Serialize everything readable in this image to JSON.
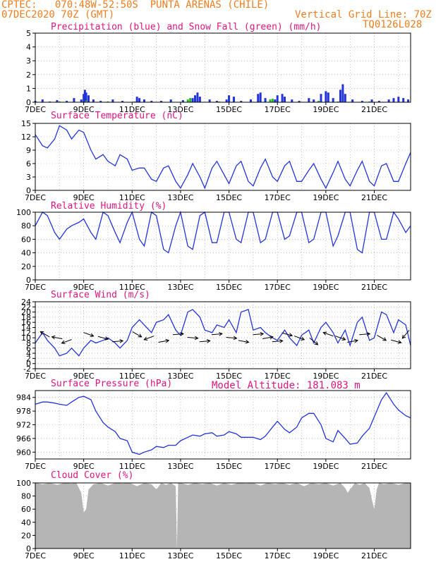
{
  "header": {
    "left_line1": "CPTEC:   070:48W-52:50S  PUNTA ARENAS (CHILE)",
    "left_line2": "07DEC2020 70Z (GMT)",
    "right_line1": "Vertical Grid Line: 70Z",
    "right_line2": "TQ0126L028",
    "model_altitude": "Model Altitude: 181.083 m"
  },
  "colors": {
    "header": "#f07d1e",
    "panel_title": "#e0147c",
    "line": "#2233dd",
    "snow": "#22bb22",
    "cloud": "#b5b5b5",
    "arrow": "#000000"
  },
  "x_axis": {
    "tick_labels": [
      "7DEC",
      "9DEC",
      "11DEC",
      "13DEC",
      "15DEC",
      "17DEC",
      "19DEC",
      "21DEC"
    ],
    "tick_days": [
      0,
      2,
      4,
      6,
      8,
      10,
      12,
      14
    ],
    "day_range": [
      0,
      15.5
    ]
  },
  "chart_data": [
    {
      "type": "bar",
      "title": "Precipitation (blue) and Snow Fall (green) (mm/h)",
      "ylim": [
        0,
        5
      ],
      "yticks": [
        0,
        1,
        2,
        3,
        4,
        5
      ],
      "series": [
        {
          "name": "Precipitation",
          "values": [
            [
              0.0,
              0.1
            ],
            [
              0.3,
              0.2
            ],
            [
              0.6,
              0.05
            ],
            [
              0.9,
              0.15
            ],
            [
              1.3,
              0.1
            ],
            [
              1.6,
              0.3
            ],
            [
              1.9,
              0.2
            ],
            [
              2.0,
              0.6
            ],
            [
              2.05,
              0.9
            ],
            [
              2.1,
              0.7
            ],
            [
              2.2,
              0.5
            ],
            [
              2.4,
              0.2
            ],
            [
              2.7,
              0.1
            ],
            [
              3.2,
              0.2
            ],
            [
              3.6,
              0.1
            ],
            [
              4.2,
              0.4
            ],
            [
              4.3,
              0.3
            ],
            [
              4.5,
              0.2
            ],
            [
              4.8,
              0.1
            ],
            [
              5.2,
              0.1
            ],
            [
              5.6,
              0.2
            ],
            [
              6.1,
              0.15
            ],
            [
              6.5,
              0.3
            ],
            [
              6.6,
              0.5
            ],
            [
              6.7,
              0.7
            ],
            [
              6.8,
              0.4
            ],
            [
              7.2,
              0.2
            ],
            [
              7.5,
              0.1
            ],
            [
              7.9,
              0.2
            ],
            [
              8.0,
              0.5
            ],
            [
              8.2,
              0.4
            ],
            [
              8.5,
              0.1
            ],
            [
              8.9,
              0.2
            ],
            [
              9.2,
              0.6
            ],
            [
              9.3,
              0.7
            ],
            [
              9.5,
              0.3
            ],
            [
              9.9,
              0.2
            ],
            [
              10.0,
              0.5
            ],
            [
              10.2,
              0.6
            ],
            [
              10.3,
              0.4
            ],
            [
              10.6,
              0.2
            ],
            [
              10.9,
              0.1
            ],
            [
              11.3,
              0.3
            ],
            [
              11.5,
              0.2
            ],
            [
              11.8,
              0.6
            ],
            [
              12.0,
              0.8
            ],
            [
              12.1,
              0.7
            ],
            [
              12.3,
              0.3
            ],
            [
              12.6,
              0.9
            ],
            [
              12.7,
              1.3
            ],
            [
              12.8,
              0.6
            ],
            [
              13.1,
              0.2
            ],
            [
              13.5,
              0.1
            ],
            [
              13.9,
              0.2
            ],
            [
              14.2,
              0.1
            ],
            [
              14.6,
              0.2
            ],
            [
              14.8,
              0.3
            ],
            [
              15.0,
              0.4
            ],
            [
              15.2,
              0.3
            ],
            [
              15.4,
              0.2
            ]
          ]
        },
        {
          "name": "Snow Fall",
          "values": [
            [
              1.0,
              0.05
            ],
            [
              2.1,
              0.1
            ],
            [
              3.0,
              0.05
            ],
            [
              4.1,
              0.05
            ],
            [
              6.3,
              0.2
            ],
            [
              6.4,
              0.3
            ],
            [
              7.6,
              0.05
            ],
            [
              9.7,
              0.2
            ],
            [
              9.8,
              0.25
            ],
            [
              11.7,
              0.1
            ],
            [
              12.5,
              0.05
            ],
            [
              13.8,
              0.05
            ]
          ]
        }
      ]
    },
    {
      "type": "line",
      "title": "Surface Temperature (nC)",
      "ylim": [
        0,
        15
      ],
      "yticks": [
        0,
        3,
        6,
        9,
        12,
        15
      ],
      "x": [
        0,
        0.3,
        0.5,
        0.8,
        1.0,
        1.3,
        1.5,
        1.8,
        2.0,
        2.3,
        2.5,
        2.8,
        3.0,
        3.3,
        3.5,
        3.8,
        4.0,
        4.3,
        4.5,
        4.8,
        5.0,
        5.3,
        5.5,
        5.8,
        6.0,
        6.3,
        6.5,
        6.8,
        7.0,
        7.3,
        7.5,
        7.8,
        8.0,
        8.3,
        8.5,
        8.8,
        9.0,
        9.3,
        9.5,
        9.8,
        10.0,
        10.3,
        10.5,
        10.8,
        11.0,
        11.3,
        11.5,
        11.8,
        12.0,
        12.3,
        12.5,
        12.8,
        13.0,
        13.3,
        13.5,
        13.8,
        14.0,
        14.3,
        14.5,
        14.8,
        15.0,
        15.3,
        15.5
      ],
      "values": [
        12.5,
        10,
        9.5,
        11.5,
        14.5,
        13.5,
        11.5,
        13.5,
        13,
        9,
        7,
        8,
        6.5,
        5.5,
        8,
        7,
        4.5,
        5,
        5,
        2.5,
        2,
        5,
        5.5,
        2,
        0.5,
        3.5,
        6,
        3,
        0.5,
        5,
        6.5,
        3.5,
        1.5,
        5.5,
        6.5,
        2,
        1,
        5,
        7,
        3,
        2,
        5.5,
        6.5,
        2,
        2,
        4.5,
        6,
        2.5,
        0.5,
        4,
        6.5,
        2.5,
        1,
        4.5,
        6.5,
        2,
        1,
        5.5,
        6,
        2,
        2,
        6,
        8.5
      ]
    },
    {
      "type": "line",
      "title": "Relative Humidity (%)",
      "ylim": [
        0,
        100
      ],
      "yticks": [
        0,
        20,
        40,
        60,
        80,
        100
      ],
      "x": [
        0,
        0.3,
        0.5,
        0.8,
        1.0,
        1.3,
        1.5,
        1.8,
        2.0,
        2.3,
        2.5,
        2.8,
        3.0,
        3.3,
        3.5,
        3.8,
        4.0,
        4.3,
        4.5,
        4.8,
        5.0,
        5.3,
        5.5,
        5.8,
        6.0,
        6.3,
        6.5,
        6.8,
        7.0,
        7.3,
        7.5,
        7.8,
        8.0,
        8.3,
        8.5,
        8.8,
        9.0,
        9.3,
        9.5,
        9.8,
        10.0,
        10.3,
        10.5,
        10.8,
        11.0,
        11.3,
        11.5,
        11.8,
        12.0,
        12.3,
        12.5,
        12.8,
        13.0,
        13.3,
        13.5,
        13.8,
        14.0,
        14.3,
        14.5,
        14.8,
        15.0,
        15.3,
        15.5
      ],
      "values": [
        80,
        100,
        95,
        70,
        60,
        75,
        80,
        85,
        90,
        70,
        60,
        100,
        95,
        70,
        55,
        85,
        100,
        60,
        50,
        100,
        95,
        45,
        40,
        80,
        100,
        50,
        45,
        95,
        100,
        55,
        55,
        100,
        100,
        60,
        55,
        100,
        100,
        55,
        60,
        100,
        100,
        60,
        65,
        100,
        100,
        55,
        60,
        100,
        100,
        50,
        65,
        100,
        100,
        45,
        40,
        100,
        100,
        60,
        60,
        100,
        90,
        70,
        80
      ]
    },
    {
      "type": "line",
      "title": "Surface Wind (m/s)",
      "ylim": [
        -2,
        24
      ],
      "yticks": [
        -2,
        0,
        2,
        4,
        6,
        8,
        10,
        12,
        14,
        16,
        18,
        20,
        22,
        24
      ],
      "x": [
        0,
        0.3,
        0.5,
        0.8,
        1.0,
        1.3,
        1.5,
        1.8,
        2.0,
        2.3,
        2.5,
        2.8,
        3.0,
        3.3,
        3.5,
        3.8,
        4.0,
        4.3,
        4.5,
        4.8,
        5.0,
        5.3,
        5.5,
        5.8,
        6.0,
        6.3,
        6.5,
        6.8,
        7.0,
        7.3,
        7.5,
        7.8,
        8.0,
        8.3,
        8.5,
        8.8,
        9.0,
        9.3,
        9.5,
        9.8,
        10.0,
        10.3,
        10.5,
        10.8,
        11.0,
        11.3,
        11.5,
        11.8,
        12.0,
        12.3,
        12.5,
        12.8,
        13.0,
        13.3,
        13.5,
        13.8,
        14.0,
        14.3,
        14.5,
        14.8,
        15.0,
        15.3,
        15.5
      ],
      "values": [
        8,
        12,
        9,
        6,
        3,
        4,
        6,
        3,
        6,
        9,
        8,
        9,
        10,
        8,
        6,
        9,
        14,
        17,
        15,
        12,
        16,
        17,
        19,
        13,
        11,
        20,
        21,
        18,
        13,
        12,
        15,
        14,
        17,
        12,
        20,
        21,
        13,
        14,
        12,
        10,
        9,
        13,
        10,
        7,
        11,
        13,
        8,
        14,
        16,
        12,
        8,
        13,
        7,
        16,
        18,
        9,
        10,
        20,
        19,
        12,
        17,
        15,
        7
      ],
      "arrows": [
        [
          0.4,
          150
        ],
        [
          0.9,
          170
        ],
        [
          1.3,
          200
        ],
        [
          2.2,
          340
        ],
        [
          2.8,
          345
        ],
        [
          3.4,
          5
        ],
        [
          4.2,
          330
        ],
        [
          4.7,
          200
        ],
        [
          5.3,
          10
        ],
        [
          5.9,
          5
        ],
        [
          6.5,
          355
        ],
        [
          7.0,
          5
        ],
        [
          7.5,
          5
        ],
        [
          8.1,
          355
        ],
        [
          8.6,
          350
        ],
        [
          9.2,
          5
        ],
        [
          9.6,
          10
        ],
        [
          10.0,
          5
        ],
        [
          10.4,
          345
        ],
        [
          10.9,
          340
        ],
        [
          11.5,
          320
        ],
        [
          12.1,
          160
        ],
        [
          12.6,
          340
        ],
        [
          13.1,
          10
        ],
        [
          13.6,
          5
        ],
        [
          14.3,
          330
        ],
        [
          14.9,
          345
        ],
        [
          15.3,
          230
        ]
      ]
    },
    {
      "type": "line",
      "title": "Surface Pressure (hPa)",
      "ylim": [
        957,
        987
      ],
      "yticks": [
        960,
        966,
        972,
        978,
        984
      ],
      "x": [
        0,
        0.3,
        0.5,
        0.8,
        1.0,
        1.3,
        1.5,
        1.8,
        2.0,
        2.3,
        2.5,
        2.8,
        3.0,
        3.3,
        3.5,
        3.8,
        4.0,
        4.3,
        4.5,
        4.8,
        5.0,
        5.3,
        5.5,
        5.8,
        6.0,
        6.3,
        6.5,
        6.8,
        7.0,
        7.3,
        7.5,
        7.8,
        8.0,
        8.3,
        8.5,
        8.8,
        9.0,
        9.3,
        9.5,
        9.8,
        10.0,
        10.3,
        10.5,
        10.8,
        11.0,
        11.3,
        11.5,
        11.8,
        12.0,
        12.3,
        12.5,
        12.8,
        13.0,
        13.3,
        13.5,
        13.8,
        14.0,
        14.3,
        14.5,
        14.8,
        15.0,
        15.3,
        15.5
      ],
      "values": [
        981,
        982,
        982,
        981.5,
        981,
        980.5,
        982,
        984,
        984.5,
        983,
        978,
        973,
        971,
        969,
        966,
        965,
        960,
        959,
        960,
        961,
        962.5,
        962,
        963,
        963,
        965,
        966.5,
        967.5,
        967,
        968,
        968.5,
        967,
        967.5,
        969,
        968,
        966.5,
        966.5,
        966.5,
        965.5,
        967,
        971,
        973.5,
        970,
        968.5,
        971,
        975,
        977,
        977,
        972,
        966,
        964.5,
        969.5,
        966,
        963.5,
        964,
        967,
        970.5,
        975.5,
        983,
        986,
        981,
        978.5,
        976,
        975
      ]
    },
    {
      "type": "area",
      "title": "Cloud Cover (%)",
      "ylim": [
        0,
        100
      ],
      "yticks": [
        0,
        20,
        40,
        60,
        80,
        100
      ],
      "x": [
        0,
        0.3,
        0.6,
        0.9,
        1.2,
        1.5,
        1.7,
        1.9,
        2.0,
        2.1,
        2.2,
        2.4,
        2.7,
        3.0,
        3.3,
        3.6,
        3.9,
        4.2,
        4.5,
        4.8,
        5.0,
        5.2,
        5.4,
        5.6,
        5.8,
        5.85,
        5.9,
        6.0,
        6.3,
        6.6,
        6.9,
        7.2,
        7.5,
        7.8,
        8.1,
        8.4,
        8.7,
        9.0,
        9.3,
        9.6,
        9.9,
        10.2,
        10.5,
        10.8,
        11.1,
        11.4,
        11.7,
        12.0,
        12.3,
        12.6,
        12.8,
        12.9,
        13.0,
        13.2,
        13.4,
        13.6,
        13.8,
        13.9,
        14.0,
        14.1,
        14.2,
        14.4,
        14.7,
        15.0,
        15.3,
        15.5
      ],
      "values": [
        100,
        98,
        100,
        97,
        100,
        99,
        100,
        85,
        55,
        60,
        90,
        98,
        100,
        96,
        100,
        99,
        100,
        95,
        100,
        98,
        90,
        100,
        97,
        100,
        95,
        0,
        100,
        100,
        97,
        100,
        98,
        100,
        96,
        100,
        97,
        100,
        99,
        100,
        96,
        100,
        98,
        100,
        97,
        100,
        95,
        100,
        98,
        100,
        96,
        100,
        92,
        85,
        90,
        100,
        97,
        100,
        92,
        75,
        60,
        90,
        100,
        98,
        100,
        97,
        100,
        100
      ]
    }
  ]
}
